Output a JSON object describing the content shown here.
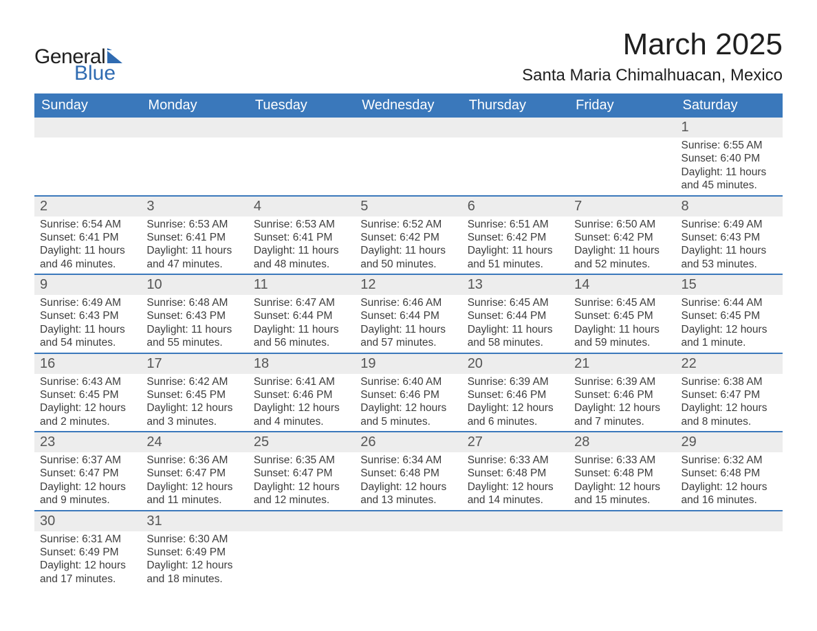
{
  "logo": {
    "t1": "General",
    "t2": "Blue",
    "brand_color": "#2f6bb1"
  },
  "title": "March 2025",
  "location": "Santa Maria Chimalhuacan, Mexico",
  "table_style": {
    "header_bg": "#3a78bb",
    "header_fg": "#ffffff",
    "header_fontsize": 20,
    "daynum_bg": "#ededed",
    "daynum_color": "#555555",
    "body_fontsize": 15.5,
    "row_border_color": "#3a78bb"
  },
  "columns": [
    "Sunday",
    "Monday",
    "Tuesday",
    "Wednesday",
    "Thursday",
    "Friday",
    "Saturday"
  ],
  "weeks": [
    [
      null,
      null,
      null,
      null,
      null,
      null,
      {
        "n": "1",
        "sr": "6:55 AM",
        "ss": "6:40 PM",
        "dl": "11 hours and 45 minutes."
      }
    ],
    [
      {
        "n": "2",
        "sr": "6:54 AM",
        "ss": "6:41 PM",
        "dl": "11 hours and 46 minutes."
      },
      {
        "n": "3",
        "sr": "6:53 AM",
        "ss": "6:41 PM",
        "dl": "11 hours and 47 minutes."
      },
      {
        "n": "4",
        "sr": "6:53 AM",
        "ss": "6:41 PM",
        "dl": "11 hours and 48 minutes."
      },
      {
        "n": "5",
        "sr": "6:52 AM",
        "ss": "6:42 PM",
        "dl": "11 hours and 50 minutes."
      },
      {
        "n": "6",
        "sr": "6:51 AM",
        "ss": "6:42 PM",
        "dl": "11 hours and 51 minutes."
      },
      {
        "n": "7",
        "sr": "6:50 AM",
        "ss": "6:42 PM",
        "dl": "11 hours and 52 minutes."
      },
      {
        "n": "8",
        "sr": "6:49 AM",
        "ss": "6:43 PM",
        "dl": "11 hours and 53 minutes."
      }
    ],
    [
      {
        "n": "9",
        "sr": "6:49 AM",
        "ss": "6:43 PM",
        "dl": "11 hours and 54 minutes."
      },
      {
        "n": "10",
        "sr": "6:48 AM",
        "ss": "6:43 PM",
        "dl": "11 hours and 55 minutes."
      },
      {
        "n": "11",
        "sr": "6:47 AM",
        "ss": "6:44 PM",
        "dl": "11 hours and 56 minutes."
      },
      {
        "n": "12",
        "sr": "6:46 AM",
        "ss": "6:44 PM",
        "dl": "11 hours and 57 minutes."
      },
      {
        "n": "13",
        "sr": "6:45 AM",
        "ss": "6:44 PM",
        "dl": "11 hours and 58 minutes."
      },
      {
        "n": "14",
        "sr": "6:45 AM",
        "ss": "6:45 PM",
        "dl": "11 hours and 59 minutes."
      },
      {
        "n": "15",
        "sr": "6:44 AM",
        "ss": "6:45 PM",
        "dl": "12 hours and 1 minute."
      }
    ],
    [
      {
        "n": "16",
        "sr": "6:43 AM",
        "ss": "6:45 PM",
        "dl": "12 hours and 2 minutes."
      },
      {
        "n": "17",
        "sr": "6:42 AM",
        "ss": "6:45 PM",
        "dl": "12 hours and 3 minutes."
      },
      {
        "n": "18",
        "sr": "6:41 AM",
        "ss": "6:46 PM",
        "dl": "12 hours and 4 minutes."
      },
      {
        "n": "19",
        "sr": "6:40 AM",
        "ss": "6:46 PM",
        "dl": "12 hours and 5 minutes."
      },
      {
        "n": "20",
        "sr": "6:39 AM",
        "ss": "6:46 PM",
        "dl": "12 hours and 6 minutes."
      },
      {
        "n": "21",
        "sr": "6:39 AM",
        "ss": "6:46 PM",
        "dl": "12 hours and 7 minutes."
      },
      {
        "n": "22",
        "sr": "6:38 AM",
        "ss": "6:47 PM",
        "dl": "12 hours and 8 minutes."
      }
    ],
    [
      {
        "n": "23",
        "sr": "6:37 AM",
        "ss": "6:47 PM",
        "dl": "12 hours and 9 minutes."
      },
      {
        "n": "24",
        "sr": "6:36 AM",
        "ss": "6:47 PM",
        "dl": "12 hours and 11 minutes."
      },
      {
        "n": "25",
        "sr": "6:35 AM",
        "ss": "6:47 PM",
        "dl": "12 hours and 12 minutes."
      },
      {
        "n": "26",
        "sr": "6:34 AM",
        "ss": "6:48 PM",
        "dl": "12 hours and 13 minutes."
      },
      {
        "n": "27",
        "sr": "6:33 AM",
        "ss": "6:48 PM",
        "dl": "12 hours and 14 minutes."
      },
      {
        "n": "28",
        "sr": "6:33 AM",
        "ss": "6:48 PM",
        "dl": "12 hours and 15 minutes."
      },
      {
        "n": "29",
        "sr": "6:32 AM",
        "ss": "6:48 PM",
        "dl": "12 hours and 16 minutes."
      }
    ],
    [
      {
        "n": "30",
        "sr": "6:31 AM",
        "ss": "6:49 PM",
        "dl": "12 hours and 17 minutes."
      },
      {
        "n": "31",
        "sr": "6:30 AM",
        "ss": "6:49 PM",
        "dl": "12 hours and 18 minutes."
      },
      null,
      null,
      null,
      null,
      null
    ]
  ],
  "labels": {
    "sunrise": "Sunrise: ",
    "sunset": "Sunset: ",
    "daylight": "Daylight: "
  }
}
